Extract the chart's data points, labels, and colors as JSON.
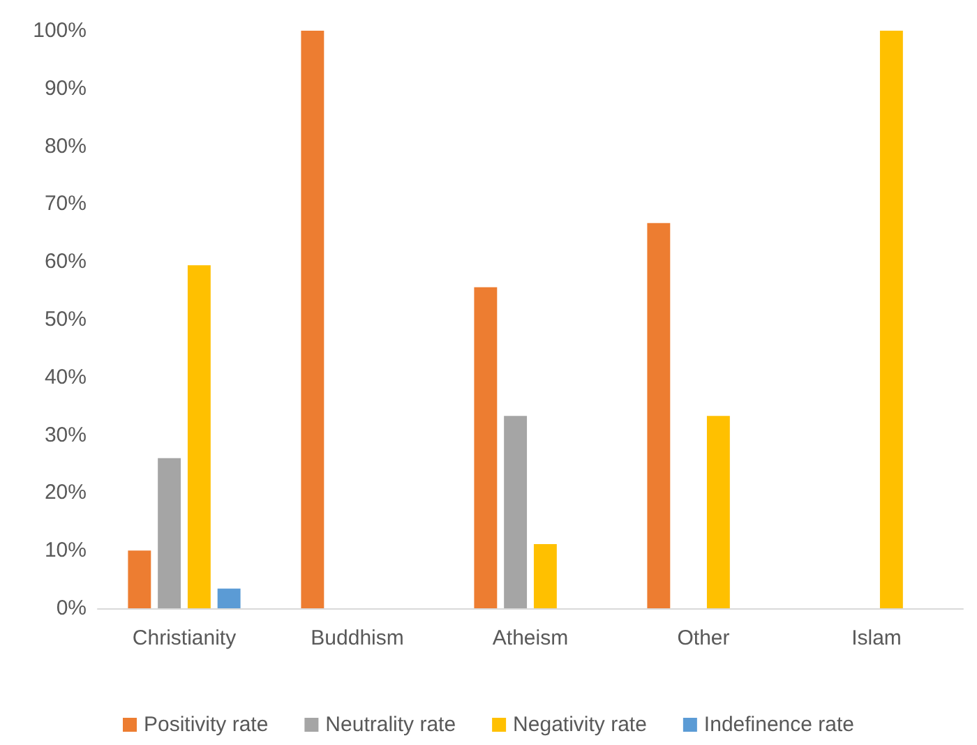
{
  "chart_data": {
    "type": "bar",
    "categories": [
      "Christianity",
      "Buddhism",
      "Atheism",
      "Other",
      "Islam"
    ],
    "series": [
      {
        "name": "Positivity rate",
        "color": "#ed7d31",
        "values": [
          10,
          100,
          55.6,
          66.7,
          0
        ]
      },
      {
        "name": "Neutrality rate",
        "color": "#a5a5a5",
        "values": [
          26,
          0,
          33.3,
          0,
          0
        ]
      },
      {
        "name": "Negativity rate",
        "color": "#ffc000",
        "values": [
          59.4,
          0,
          11.1,
          33.3,
          100
        ]
      },
      {
        "name": "Indefinence rate",
        "color": "#5b9bd5",
        "values": [
          3.4,
          0,
          0,
          0,
          0
        ]
      }
    ],
    "ylim": [
      0,
      100
    ],
    "yticks": [
      {
        "value": 0,
        "label": "0%"
      },
      {
        "value": 10,
        "label": "10%"
      },
      {
        "value": 20,
        "label": "20%"
      },
      {
        "value": 30,
        "label": "30%"
      },
      {
        "value": 40,
        "label": "40%"
      },
      {
        "value": 50,
        "label": "50%"
      },
      {
        "value": 60,
        "label": "60%"
      },
      {
        "value": 70,
        "label": "70%"
      },
      {
        "value": 80,
        "label": "80%"
      },
      {
        "value": 90,
        "label": "90%"
      },
      {
        "value": 100,
        "label": "100%"
      }
    ],
    "grid": false,
    "legend": "bottom"
  }
}
